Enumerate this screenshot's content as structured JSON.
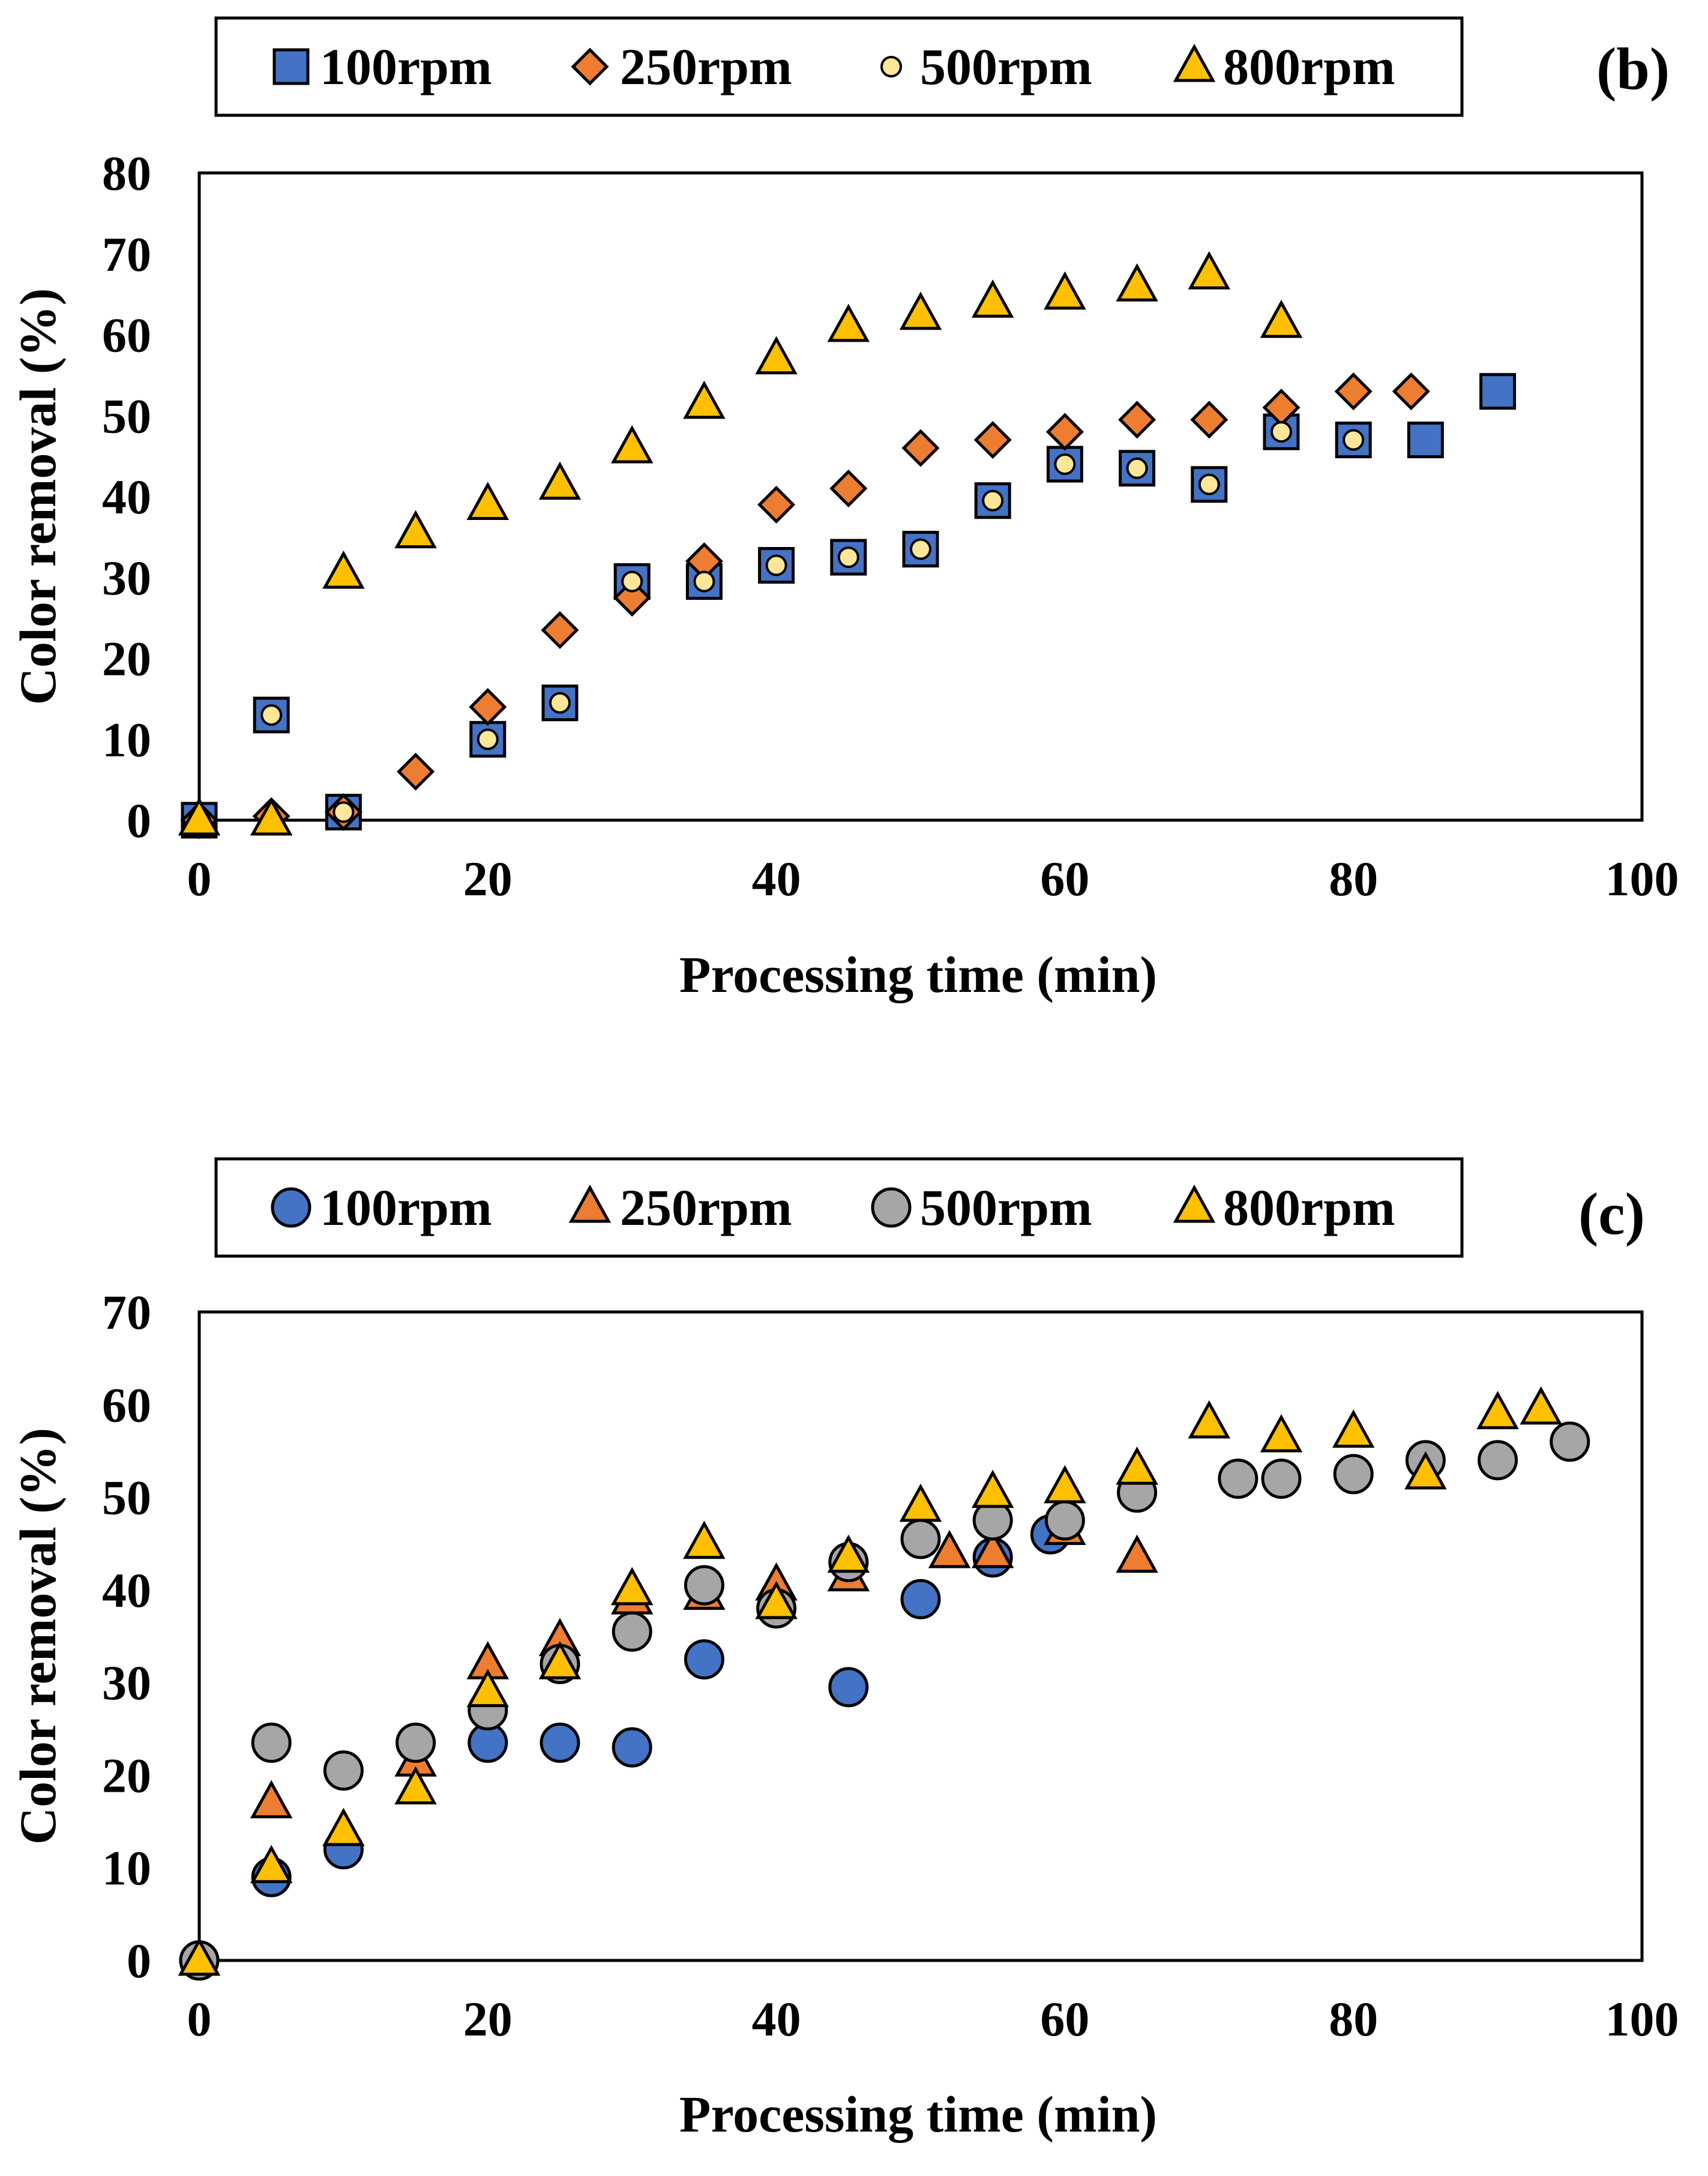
{
  "chart_data": [
    {
      "type": "scatter",
      "panel_label": "(b)",
      "xlabel": "Processing time (min)",
      "ylabel": "Color removal (%)",
      "xlim": [
        0,
        100
      ],
      "ylim": [
        0,
        80
      ],
      "xticks": [
        0,
        20,
        40,
        60,
        80,
        100
      ],
      "yticks": [
        0,
        10,
        20,
        30,
        40,
        50,
        60,
        70,
        80
      ],
      "grid": false,
      "legend_position": "top",
      "series": [
        {
          "name": "100rpm",
          "marker": "square",
          "color": "#4472C4",
          "x": [
            0,
            5,
            10,
            20,
            25,
            30,
            35,
            40,
            45,
            50,
            55,
            60,
            65,
            70,
            75,
            80,
            85,
            90
          ],
          "y": [
            0,
            13,
            1,
            10,
            14.5,
            29.5,
            29.5,
            31.5,
            32.5,
            33.5,
            39.5,
            44,
            43.5,
            41.5,
            48,
            47,
            47,
            53
          ]
        },
        {
          "name": "250rpm",
          "marker": "diamond",
          "color": "#ED7D31",
          "x": [
            0,
            5,
            10,
            15,
            20,
            25,
            30,
            35,
            40,
            45,
            50,
            55,
            60,
            65,
            70,
            75,
            80,
            84
          ],
          "y": [
            0,
            0.5,
            1,
            6,
            14,
            23.5,
            27.5,
            32,
            39,
            41,
            46,
            47,
            48,
            49.5,
            49.5,
            51,
            53,
            53
          ]
        },
        {
          "name": "500rpm",
          "marker": "circle-small",
          "color": "#FFE699",
          "x": [
            0,
            5,
            10,
            20,
            25,
            30,
            35,
            40,
            45,
            50,
            55,
            60,
            65,
            70,
            75,
            80
          ],
          "y": [
            0,
            13,
            1,
            10,
            14.5,
            29.5,
            29.5,
            31.5,
            32.5,
            33.5,
            39.5,
            44,
            43.5,
            41.5,
            48,
            47
          ]
        },
        {
          "name": "800rpm",
          "marker": "triangle",
          "color": "#FFC000",
          "x": [
            0,
            5,
            10,
            15,
            20,
            25,
            30,
            35,
            40,
            45,
            50,
            55,
            60,
            65,
            70,
            75
          ],
          "y": [
            0,
            0,
            30.5,
            35.5,
            39,
            41.5,
            46,
            51.5,
            57,
            61,
            62.5,
            64,
            65,
            66,
            67.5,
            61.5
          ]
        }
      ]
    },
    {
      "type": "scatter",
      "panel_label": "(c)",
      "xlabel": "Processing time (min)",
      "ylabel": "Color removal (%)",
      "xlim": [
        0,
        100
      ],
      "ylim": [
        0,
        70
      ],
      "xticks": [
        0,
        20,
        40,
        60,
        80,
        100
      ],
      "yticks": [
        0,
        10,
        20,
        30,
        40,
        50,
        60,
        70
      ],
      "grid": false,
      "legend_position": "top",
      "series": [
        {
          "name": "100rpm",
          "marker": "circle",
          "color": "#4472C4",
          "x": [
            0,
            5,
            10,
            20,
            25,
            30,
            35,
            45,
            50,
            55,
            59
          ],
          "y": [
            0,
            9,
            12,
            23.5,
            23.5,
            23,
            32.5,
            29.5,
            39,
            43.5,
            46
          ]
        },
        {
          "name": "250rpm",
          "marker": "triangle",
          "color": "#ED7D31",
          "x": [
            0,
            5,
            15,
            20,
            25,
            30,
            35,
            40,
            45,
            52,
            55,
            60,
            65
          ],
          "y": [
            0,
            17,
            21.5,
            32,
            34.5,
            39,
            39.5,
            40.5,
            41.5,
            44,
            44,
            46.5,
            43.5
          ]
        },
        {
          "name": "500rpm",
          "marker": "circle",
          "color": "#A6A6A6",
          "x": [
            0,
            5,
            10,
            15,
            20,
            25,
            30,
            35,
            40,
            45,
            50,
            55,
            60,
            65,
            72,
            75,
            80,
            85,
            90,
            95
          ],
          "y": [
            0,
            23.5,
            20.5,
            23.5,
            27,
            32,
            35.5,
            40.5,
            38,
            43,
            45.5,
            47.5,
            47.5,
            50.5,
            52,
            52,
            52.5,
            54,
            54,
            56
          ]
        },
        {
          "name": "800rpm",
          "marker": "triangle",
          "color": "#FFC000",
          "x": [
            0,
            5,
            10,
            15,
            20,
            25,
            30,
            35,
            40,
            45,
            50,
            55,
            60,
            65,
            70,
            75,
            80,
            85,
            90,
            93
          ],
          "y": [
            0,
            10,
            14,
            18.5,
            29,
            32,
            40,
            45,
            38.5,
            43.5,
            49,
            50.5,
            51,
            53,
            58,
            56.5,
            57,
            52.5,
            59,
            59.5
          ]
        }
      ]
    }
  ]
}
